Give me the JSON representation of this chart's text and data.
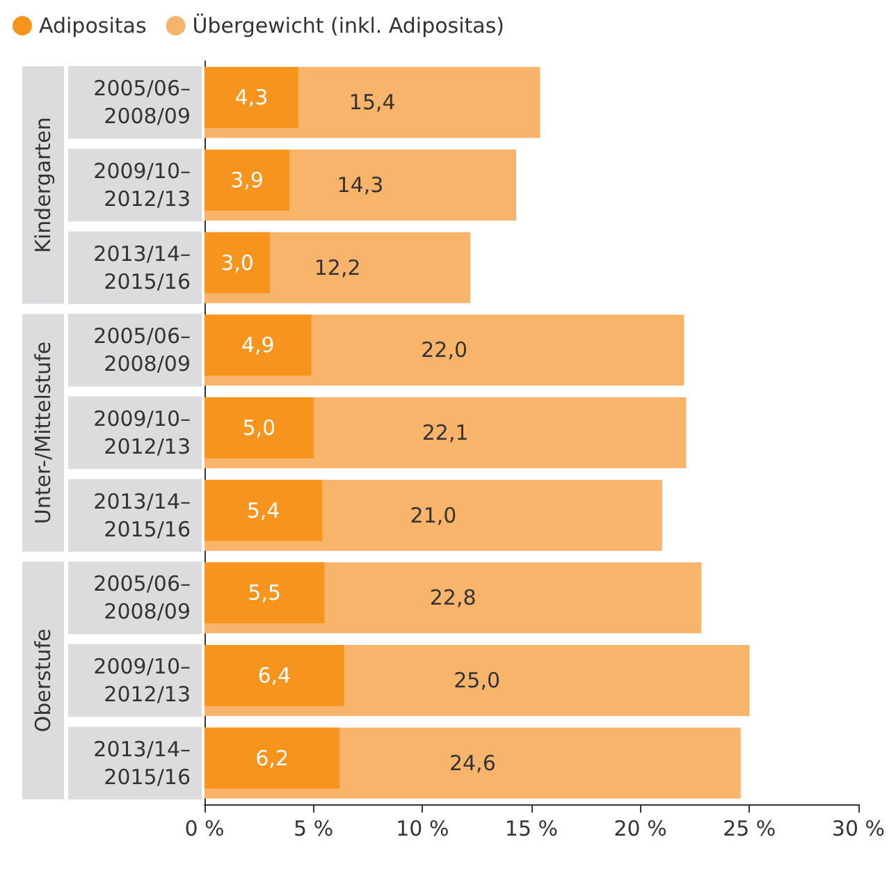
{
  "chart_data": {
    "type": "bar",
    "orientation": "horizontal",
    "legend": "top left",
    "categories": [
      "2005/06–\n2008/09",
      "2009/10–\n2012/13",
      "2013/14–\n2015/16",
      "2005/06–\n2008/09",
      "2009/10–\n2012/13",
      "2013/14–\n2015/16",
      "2005/06–\n2008/09",
      "2009/10–\n2012/13",
      "2013/14–\n2015/16"
    ],
    "series": [
      {
        "name": "Adipositas",
        "color": "#f7941d",
        "values": [
          4.3,
          3.9,
          3.0,
          4.9,
          5.0,
          5.4,
          5.5,
          6.4,
          6.2
        ],
        "value_labels": [
          "4,3",
          "3,9",
          "3,0",
          "4,9",
          "5,0",
          "5,4",
          "5,5",
          "6,4",
          "6,2"
        ]
      },
      {
        "name": "Übergewicht (inkl. Adipositas)",
        "color": "#f9b46b",
        "values": [
          15.4,
          14.3,
          12.2,
          22.0,
          22.1,
          21.0,
          22.8,
          25.0,
          24.6
        ],
        "value_labels": [
          "15,4",
          "14,3",
          "12,2",
          "22,0",
          "22,1",
          "21,0",
          "22,8",
          "25,0",
          "24,6"
        ]
      }
    ],
    "xlim": [
      0,
      30
    ],
    "xticks": [
      {
        "value": 0,
        "label": "0 %"
      },
      {
        "value": 5,
        "label": "5 %"
      },
      {
        "value": 10,
        "label": "10 %"
      },
      {
        "value": 15,
        "label": "15 %"
      },
      {
        "value": 20,
        "label": "20 %"
      },
      {
        "value": 25,
        "label": "25 %"
      },
      {
        "value": 30,
        "label": "30 %"
      }
    ],
    "annotations": [
      "Kindergarten",
      "Unter-/Mittelstufe",
      "Oberstufe"
    ]
  }
}
